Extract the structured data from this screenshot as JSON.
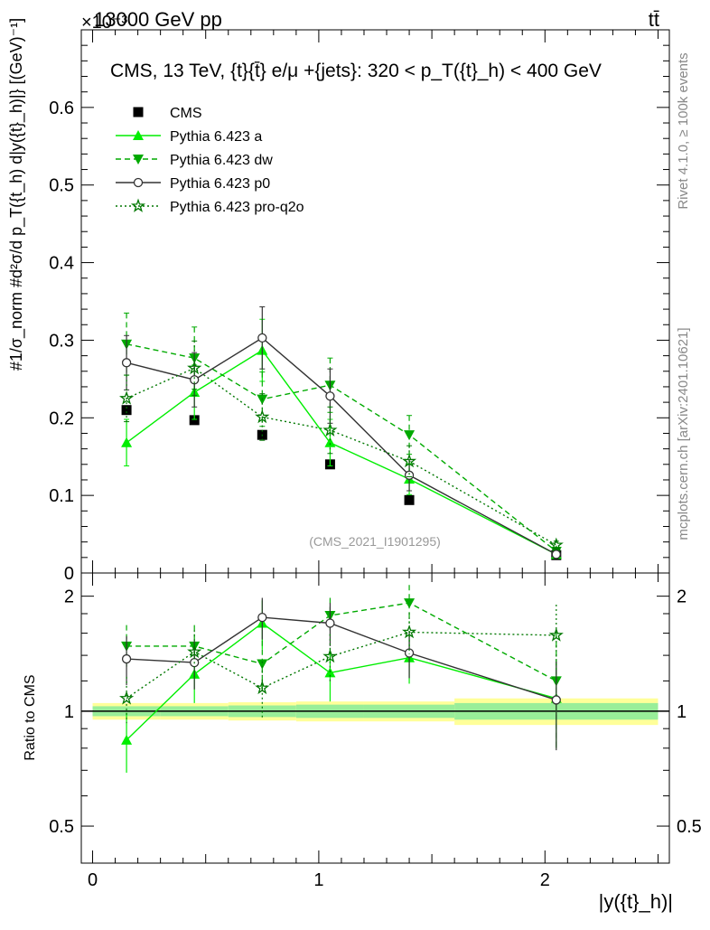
{
  "header": {
    "left": "13000 GeV pp",
    "exponent": "×10⁻³",
    "right": "tt̄"
  },
  "side_labels": {
    "rivet": "Rivet 4.1.0, ≥ 100k events",
    "mcplots": "mcplots.cern.ch [arXiv:2401.10621]"
  },
  "chart_data": [
    {
      "type": "line",
      "panel": "main",
      "title": "CMS, 13 TeV, {t}{t̄} e/μ +{jets}: 320 <  p_T({t}_h) < 400 GeV",
      "ylabel": "#1/σ_norm #d²σ/d p_T({t_h) d|y({t}_h)|} [(GeV)⁻¹]",
      "watermark": "(CMS_2021_I1901295)",
      "ylim": [
        0,
        0.7
      ],
      "y_ticks": [
        "0",
        "0.1",
        "0.2",
        "0.3",
        "0.4",
        "0.5",
        "0.6"
      ],
      "x": [
        0.15,
        0.45,
        0.75,
        1.05,
        1.4,
        2.05
      ],
      "series": [
        {
          "name": "CMS",
          "color": "#000000",
          "style": "data",
          "values": [
            0.21,
            0.197,
            0.178,
            0.14,
            0.094,
            0.023
          ]
        },
        {
          "name": "Pythia 6.423 a",
          "color": "#00ee00",
          "style": "solid-triangle-up",
          "values": [
            0.168,
            0.233,
            0.287,
            0.168,
            0.121,
            0.024
          ],
          "errors": [
            0.03,
            0.035,
            0.04,
            0.03,
            0.02,
            0.004
          ]
        },
        {
          "name": "Pythia 6.423 dw",
          "color": "#00aa00",
          "style": "dashed-triangle-down",
          "values": [
            0.295,
            0.277,
            0.224,
            0.242,
            0.178,
            0.028
          ],
          "errors": [
            0.04,
            0.04,
            0.035,
            0.035,
            0.025,
            0.004
          ]
        },
        {
          "name": "Pythia 6.423 p0",
          "color": "#333333",
          "style": "solid-open-circle",
          "values": [
            0.271,
            0.249,
            0.303,
            0.228,
            0.126,
            0.024
          ],
          "errors": [
            0.035,
            0.035,
            0.04,
            0.035,
            0.02,
            0.004
          ]
        },
        {
          "name": "Pythia 6.423 pro-q2o",
          "color": "#007700",
          "style": "dotted-star",
          "values": [
            0.225,
            0.264,
            0.201,
            0.184,
            0.144,
            0.036
          ],
          "errors": [
            0.03,
            0.035,
            0.03,
            0.03,
            0.02,
            0.005
          ]
        }
      ]
    },
    {
      "type": "line",
      "panel": "ratio",
      "ylabel": "Ratio to CMS",
      "xlabel": "|y({t}_h)|",
      "ylim": [
        0.4,
        2.3
      ],
      "y_ticks": [
        "0.5",
        "1",
        "2"
      ],
      "x_ticks": [
        "0",
        "1",
        "2"
      ],
      "xlim": [
        -0.05,
        2.55
      ],
      "band_edges": [
        0,
        0.3,
        0.6,
        0.9,
        1.2,
        1.6,
        2.5
      ],
      "band_inner": [
        0.03,
        0.03,
        0.035,
        0.04,
        0.04,
        0.05
      ],
      "band_outer": [
        0.05,
        0.05,
        0.055,
        0.06,
        0.06,
        0.08
      ],
      "x": [
        0.15,
        0.45,
        0.75,
        1.05,
        1.4,
        2.05
      ],
      "series": [
        {
          "name": "Pythia 6.423 a",
          "color": "#00ee00",
          "values": [
            0.84,
            1.25,
            1.7,
            1.26,
            1.38,
            1.08
          ],
          "errors": [
            0.15,
            0.2,
            0.25,
            0.2,
            0.2,
            0.28
          ]
        },
        {
          "name": "Pythia 6.423 dw",
          "color": "#00aa00",
          "values": [
            1.48,
            1.48,
            1.33,
            1.78,
            1.92,
            1.2
          ],
          "errors": [
            0.2,
            0.2,
            0.2,
            0.2,
            0.22,
            0.4
          ]
        },
        {
          "name": "Pythia 6.423 p0",
          "color": "#333333",
          "values": [
            1.37,
            1.34,
            1.76,
            1.7,
            1.42,
            1.07
          ],
          "errors": [
            0.2,
            0.2,
            0.22,
            0.22,
            0.2,
            0.28
          ]
        },
        {
          "name": "Pythia 6.423 pro-q2o",
          "color": "#007700",
          "values": [
            1.08,
            1.43,
            1.15,
            1.39,
            1.61,
            1.58
          ],
          "errors": [
            0.15,
            0.2,
            0.2,
            0.2,
            0.2,
            0.32
          ]
        }
      ]
    }
  ]
}
